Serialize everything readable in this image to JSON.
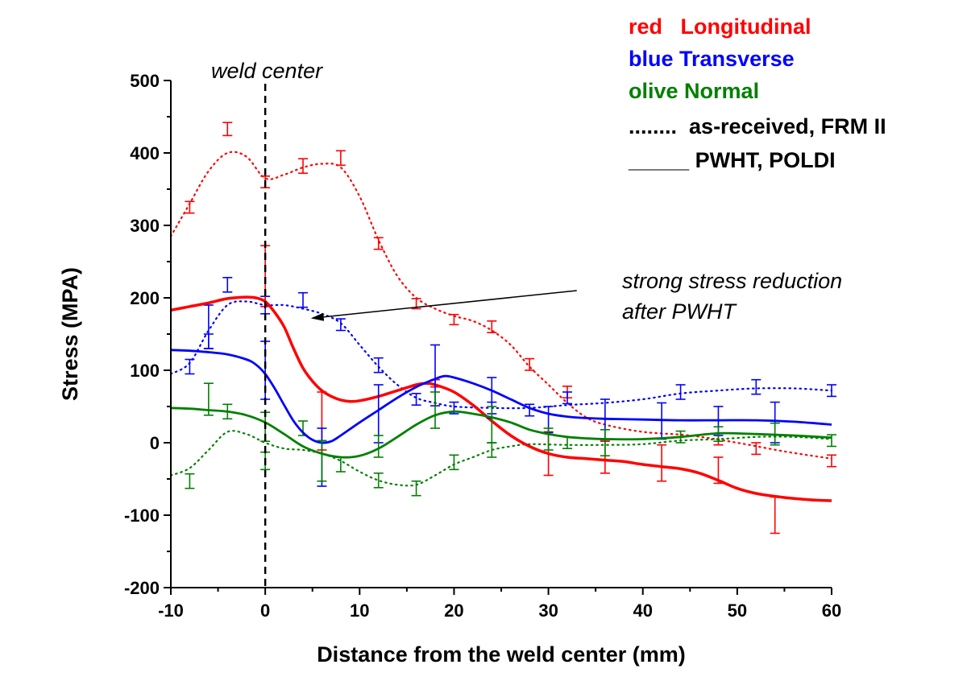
{
  "chart_data": {
    "type": "line",
    "title": "",
    "xlabel": "Distance from the weld center (mm)",
    "ylabel": "Stress (MPA)",
    "xlim": [
      -10,
      60
    ],
    "ylim": [
      -200,
      500
    ],
    "xticks": [
      -10,
      0,
      10,
      20,
      30,
      40,
      50,
      60
    ],
    "yticks": [
      -200,
      -100,
      0,
      100,
      200,
      300,
      400,
      500
    ],
    "xtick_labels": [
      "-10",
      "0",
      "10",
      "20",
      "30",
      "40",
      "50",
      "60"
    ],
    "ytick_labels": [
      "-200",
      "-100",
      "0",
      "100",
      "200",
      "300",
      "400",
      "500"
    ],
    "legend": [
      {
        "prefix": "red",
        "gap": "   ",
        "name": "Longitudinal",
        "color": "#ff0000",
        "prefix_color": "#ff0000"
      },
      {
        "prefix": "blue",
        "gap": " ",
        "name": "Transverse",
        "color": "#0000ff",
        "prefix_color": "#0000ff"
      },
      {
        "prefix": "olive",
        "gap": " ",
        "name": "Normal",
        "color": "#008000",
        "prefix_color": "#008000"
      },
      {
        "prefix": "........",
        "gap": "  ",
        "name": "as-received, FRM II",
        "color": "#000000",
        "prefix_color": "#000000"
      },
      {
        "prefix": "_____",
        "gap": " ",
        "name": "PWHT, POLDI",
        "color": "#000000",
        "prefix_color": "#000000"
      }
    ],
    "annotations": {
      "weld_center_label": "weld center",
      "weld_center_x": 0,
      "arrow_line1": "strong stress reduction",
      "arrow_line2": "after PWHT",
      "arrow_tail": [
        33,
        210
      ],
      "arrow_head": [
        5,
        172
      ]
    },
    "series": [
      {
        "name": "Longitudinal as-received, FRM II",
        "color": "#ff0000",
        "style": "dotted",
        "curve": [
          [
            -10,
            285
          ],
          [
            -8,
            330
          ],
          [
            -6,
            375
          ],
          [
            -4,
            400
          ],
          [
            -2,
            395
          ],
          [
            0,
            365
          ],
          [
            2,
            370
          ],
          [
            4,
            380
          ],
          [
            6,
            385
          ],
          [
            8,
            380
          ],
          [
            10,
            340
          ],
          [
            12,
            280
          ],
          [
            14,
            230
          ],
          [
            16,
            200
          ],
          [
            18,
            185
          ],
          [
            20,
            175
          ],
          [
            22,
            168
          ],
          [
            24,
            155
          ],
          [
            26,
            135
          ],
          [
            28,
            105
          ],
          [
            30,
            80
          ],
          [
            32,
            55
          ],
          [
            34,
            35
          ],
          [
            36,
            25
          ],
          [
            40,
            15
          ],
          [
            45,
            10
          ],
          [
            50,
            0
          ],
          [
            55,
            -12
          ],
          [
            60,
            -22
          ]
        ],
        "points": [
          {
            "x": -8,
            "y": 325,
            "err": 8
          },
          {
            "x": -4,
            "y": 433,
            "err": 9
          },
          {
            "x": 0,
            "y": 360,
            "err": 8
          },
          {
            "x": 4,
            "y": 382,
            "err": 10
          },
          {
            "x": 8,
            "y": 393,
            "err": 10
          },
          {
            "x": 12,
            "y": 275,
            "err": 8
          },
          {
            "x": 16,
            "y": 192,
            "err": 7
          },
          {
            "x": 20,
            "y": 170,
            "err": 7
          },
          {
            "x": 24,
            "y": 160,
            "err": 8
          },
          {
            "x": 28,
            "y": 108,
            "err": 8
          },
          {
            "x": 32,
            "y": 70,
            "err": 8
          },
          {
            "x": 48,
            "y": 5,
            "err": 8
          },
          {
            "x": 52,
            "y": -8,
            "err": 8
          },
          {
            "x": 60,
            "y": -25,
            "err": 8
          }
        ]
      },
      {
        "name": "Transverse as-received, FRM II",
        "color": "#0000ff",
        "style": "dotted",
        "curve": [
          [
            -10,
            95
          ],
          [
            -8,
            110
          ],
          [
            -6,
            155
          ],
          [
            -4,
            190
          ],
          [
            -2,
            195
          ],
          [
            0,
            190
          ],
          [
            2,
            190
          ],
          [
            4,
            185
          ],
          [
            6,
            178
          ],
          [
            8,
            165
          ],
          [
            10,
            135
          ],
          [
            12,
            105
          ],
          [
            14,
            80
          ],
          [
            16,
            62
          ],
          [
            18,
            55
          ],
          [
            20,
            50
          ],
          [
            24,
            48
          ],
          [
            28,
            48
          ],
          [
            32,
            52
          ],
          [
            36,
            55
          ],
          [
            40,
            60
          ],
          [
            44,
            68
          ],
          [
            48,
            72
          ],
          [
            52,
            75
          ],
          [
            56,
            75
          ],
          [
            60,
            72
          ]
        ],
        "points": [
          {
            "x": -8,
            "y": 105,
            "err": 10
          },
          {
            "x": -6,
            "y": 160,
            "err": 30
          },
          {
            "x": -4,
            "y": 218,
            "err": 10
          },
          {
            "x": 0,
            "y": 190,
            "err": 12
          },
          {
            "x": 4,
            "y": 197,
            "err": 10
          },
          {
            "x": 8,
            "y": 163,
            "err": 8
          },
          {
            "x": 12,
            "y": 107,
            "err": 10
          },
          {
            "x": 16,
            "y": 60,
            "err": 8
          },
          {
            "x": 20,
            "y": 48,
            "err": 8
          },
          {
            "x": 24,
            "y": 48,
            "err": 8
          },
          {
            "x": 28,
            "y": 45,
            "err": 8
          },
          {
            "x": 32,
            "y": 62,
            "err": 8
          },
          {
            "x": 44,
            "y": 70,
            "err": 10
          },
          {
            "x": 52,
            "y": 77,
            "err": 10
          },
          {
            "x": 60,
            "y": 72,
            "err": 8
          }
        ]
      },
      {
        "name": "Normal as-received, FRM II",
        "color": "#008000",
        "style": "dotted",
        "curve": [
          [
            -10,
            -45
          ],
          [
            -8,
            -35
          ],
          [
            -6,
            -10
          ],
          [
            -4,
            15
          ],
          [
            -2,
            12
          ],
          [
            0,
            0
          ],
          [
            2,
            -8
          ],
          [
            4,
            -10
          ],
          [
            6,
            -15
          ],
          [
            8,
            -25
          ],
          [
            10,
            -40
          ],
          [
            12,
            -52
          ],
          [
            14,
            -58
          ],
          [
            16,
            -58
          ],
          [
            18,
            -45
          ],
          [
            20,
            -30
          ],
          [
            22,
            -20
          ],
          [
            24,
            -10
          ],
          [
            26,
            -5
          ],
          [
            28,
            -2
          ],
          [
            32,
            -3
          ],
          [
            36,
            -3
          ],
          [
            40,
            -2
          ],
          [
            44,
            3
          ],
          [
            48,
            5
          ],
          [
            52,
            8
          ],
          [
            56,
            8
          ],
          [
            60,
            5
          ]
        ],
        "points": [
          {
            "x": -8,
            "y": -53,
            "err": 10
          },
          {
            "x": -4,
            "y": 43,
            "err": 10
          },
          {
            "x": 0,
            "y": -25,
            "err": 12
          },
          {
            "x": 4,
            "y": 20,
            "err": 10
          },
          {
            "x": 8,
            "y": -30,
            "err": 10
          },
          {
            "x": 12,
            "y": -52,
            "err": 10
          },
          {
            "x": 16,
            "y": -63,
            "err": 10
          },
          {
            "x": 20,
            "y": -27,
            "err": 10
          },
          {
            "x": 24,
            "y": -10,
            "err": 10
          },
          {
            "x": 32,
            "y": 0,
            "err": 8
          },
          {
            "x": 44,
            "y": 8,
            "err": 8
          },
          {
            "x": 60,
            "y": 3,
            "err": 8
          }
        ]
      },
      {
        "name": "Longitudinal PWHT, POLDI",
        "color": "#ff0000",
        "style": "solid",
        "curve": [
          [
            -10,
            183
          ],
          [
            -8,
            188
          ],
          [
            -6,
            193
          ],
          [
            -4,
            199
          ],
          [
            -2,
            201
          ],
          [
            -1,
            200
          ],
          [
            0,
            195
          ],
          [
            1,
            180
          ],
          [
            2,
            160
          ],
          [
            3,
            130
          ],
          [
            4,
            103
          ],
          [
            5,
            85
          ],
          [
            6,
            72
          ],
          [
            7,
            64
          ],
          [
            8,
            59
          ],
          [
            9,
            57
          ],
          [
            10,
            58
          ],
          [
            12,
            64
          ],
          [
            14,
            72
          ],
          [
            16,
            80
          ],
          [
            17,
            82
          ],
          [
            18,
            80
          ],
          [
            20,
            70
          ],
          [
            22,
            52
          ],
          [
            24,
            30
          ],
          [
            26,
            10
          ],
          [
            28,
            -5
          ],
          [
            30,
            -15
          ],
          [
            32,
            -20
          ],
          [
            34,
            -22
          ],
          [
            36,
            -24
          ],
          [
            38,
            -26
          ],
          [
            40,
            -30
          ],
          [
            42,
            -33
          ],
          [
            44,
            -36
          ],
          [
            46,
            -42
          ],
          [
            48,
            -52
          ],
          [
            50,
            -63
          ],
          [
            52,
            -70
          ],
          [
            54,
            -74
          ],
          [
            56,
            -77
          ],
          [
            58,
            -79
          ],
          [
            60,
            -80
          ]
        ],
        "points": [
          {
            "x": 0,
            "y": 230,
            "err": 42
          },
          {
            "x": 6,
            "y": 30,
            "err": 40
          },
          {
            "x": 18,
            "y": 82,
            "err": 5
          },
          {
            "x": 30,
            "y": -15,
            "err": 30
          },
          {
            "x": 36,
            "y": -20,
            "err": 22
          },
          {
            "x": 42,
            "y": -28,
            "err": 25
          },
          {
            "x": 48,
            "y": -38,
            "err": 18
          },
          {
            "x": 54,
            "y": -100,
            "err": 25
          }
        ]
      },
      {
        "name": "Transverse PWHT, POLDI",
        "color": "#0000ff",
        "style": "solid",
        "curve": [
          [
            -10,
            128
          ],
          [
            -8,
            127
          ],
          [
            -6,
            125
          ],
          [
            -4,
            122
          ],
          [
            -2,
            115
          ],
          [
            -1,
            108
          ],
          [
            0,
            95
          ],
          [
            1,
            75
          ],
          [
            2,
            52
          ],
          [
            3,
            30
          ],
          [
            4,
            14
          ],
          [
            5,
            4
          ],
          [
            6,
            0
          ],
          [
            7,
            2
          ],
          [
            8,
            10
          ],
          [
            10,
            28
          ],
          [
            12,
            45
          ],
          [
            14,
            62
          ],
          [
            16,
            77
          ],
          [
            18,
            88
          ],
          [
            19,
            92
          ],
          [
            20,
            90
          ],
          [
            22,
            82
          ],
          [
            24,
            72
          ],
          [
            26,
            60
          ],
          [
            28,
            48
          ],
          [
            30,
            40
          ],
          [
            32,
            36
          ],
          [
            34,
            34
          ],
          [
            36,
            33
          ],
          [
            40,
            32
          ],
          [
            44,
            31
          ],
          [
            48,
            31
          ],
          [
            52,
            31
          ],
          [
            56,
            29
          ],
          [
            60,
            25
          ]
        ],
        "points": [
          {
            "x": -6,
            "y": 140,
            "err": 10
          },
          {
            "x": 0,
            "y": 100,
            "err": 40
          },
          {
            "x": 6,
            "y": -20,
            "err": 40
          },
          {
            "x": 12,
            "y": 40,
            "err": 40
          },
          {
            "x": 18,
            "y": 93,
            "err": 42
          },
          {
            "x": 24,
            "y": 62,
            "err": 28
          },
          {
            "x": 30,
            "y": 32,
            "err": 18
          },
          {
            "x": 36,
            "y": 32,
            "err": 28
          },
          {
            "x": 42,
            "y": 30,
            "err": 25
          },
          {
            "x": 48,
            "y": 30,
            "err": 20
          },
          {
            "x": 54,
            "y": 28,
            "err": 28
          }
        ]
      },
      {
        "name": "Normal PWHT, POLDI",
        "color": "#008000",
        "style": "solid",
        "curve": [
          [
            -10,
            48
          ],
          [
            -8,
            47
          ],
          [
            -6,
            45
          ],
          [
            -4,
            43
          ],
          [
            -2,
            38
          ],
          [
            0,
            28
          ],
          [
            2,
            12
          ],
          [
            4,
            -5
          ],
          [
            6,
            -15
          ],
          [
            8,
            -20
          ],
          [
            10,
            -18
          ],
          [
            12,
            -8
          ],
          [
            14,
            8
          ],
          [
            16,
            25
          ],
          [
            18,
            38
          ],
          [
            20,
            43
          ],
          [
            22,
            40
          ],
          [
            24,
            35
          ],
          [
            26,
            28
          ],
          [
            28,
            18
          ],
          [
            30,
            12
          ],
          [
            32,
            8
          ],
          [
            34,
            6
          ],
          [
            36,
            5
          ],
          [
            40,
            5
          ],
          [
            44,
            8
          ],
          [
            48,
            13
          ],
          [
            52,
            12
          ],
          [
            56,
            10
          ],
          [
            60,
            7
          ]
        ],
        "points": [
          {
            "x": -6,
            "y": 60,
            "err": 22
          },
          {
            "x": 0,
            "y": 22,
            "err": 20
          },
          {
            "x": 6,
            "y": -25,
            "err": 28
          },
          {
            "x": 12,
            "y": -5,
            "err": 15
          },
          {
            "x": 18,
            "y": 45,
            "err": 25
          },
          {
            "x": 24,
            "y": 25,
            "err": 25
          },
          {
            "x": 30,
            "y": 5,
            "err": 15
          },
          {
            "x": 36,
            "y": 0,
            "err": 18
          },
          {
            "x": 48,
            "y": 12,
            "err": 10
          },
          {
            "x": 54,
            "y": 12,
            "err": 15
          }
        ]
      }
    ]
  }
}
